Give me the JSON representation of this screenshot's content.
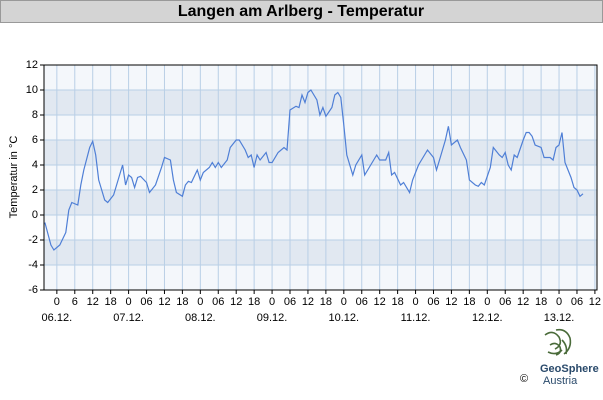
{
  "chart_data": {
    "type": "line",
    "title": "Langen am Arlberg - Temperatur",
    "y_label": "Temperatur in °C",
    "x": [
      -4,
      -2,
      -1,
      1,
      3,
      4,
      5,
      7,
      8,
      9,
      11,
      12,
      13,
      14,
      15,
      16,
      17,
      19,
      20,
      22,
      23,
      24,
      25,
      26,
      27,
      28,
      30,
      31,
      33,
      35,
      36,
      38,
      39,
      40,
      42,
      43,
      44,
      45,
      47,
      48,
      49,
      51,
      52,
      53,
      54,
      55,
      57,
      58,
      60,
      61,
      63,
      64,
      65,
      66,
      67,
      68,
      70,
      71,
      72,
      74,
      76,
      77,
      78,
      80,
      81,
      82,
      83,
      84,
      85,
      87,
      88,
      89,
      90,
      92,
      93,
      94,
      95,
      96,
      97,
      99,
      100,
      102,
      103,
      105,
      107,
      108,
      110,
      111,
      112,
      113,
      115,
      116,
      118,
      119,
      121,
      123,
      124,
      126,
      127,
      128,
      130,
      131,
      132,
      134,
      135,
      137,
      138,
      140,
      141,
      142,
      143,
      145,
      146,
      148,
      149,
      150,
      151,
      152,
      153,
      154,
      156,
      157,
      158,
      159,
      160,
      162,
      163,
      165,
      166,
      167,
      168,
      169,
      170,
      171,
      172,
      173,
      174,
      175,
      176
    ],
    "series": [
      {
        "name": "Temperatur",
        "color": "#4f7fd6",
        "values": [
          -0.6,
          -2.4,
          -2.8,
          -2.4,
          -1.4,
          0.4,
          1.0,
          0.8,
          2.4,
          3.6,
          5.4,
          5.9,
          4.8,
          2.8,
          2.0,
          1.2,
          1.0,
          1.6,
          2.4,
          4.0,
          2.4,
          3.2,
          3.0,
          2.2,
          3.0,
          3.1,
          2.6,
          1.8,
          2.4,
          3.8,
          4.6,
          4.4,
          2.8,
          1.8,
          1.5,
          2.4,
          2.7,
          2.6,
          3.6,
          2.8,
          3.4,
          3.8,
          4.2,
          3.8,
          4.2,
          3.8,
          4.4,
          5.4,
          6.0,
          6.0,
          5.2,
          4.6,
          4.8,
          3.8,
          4.8,
          4.4,
          5.0,
          4.2,
          4.2,
          5.0,
          5.4,
          5.2,
          8.4,
          8.7,
          8.6,
          9.6,
          9.0,
          9.8,
          10.0,
          9.2,
          8.0,
          8.6,
          7.9,
          8.6,
          9.6,
          9.8,
          9.4,
          7.2,
          4.8,
          3.2,
          4.0,
          4.8,
          3.2,
          4.0,
          4.8,
          4.4,
          4.4,
          5.0,
          3.2,
          3.4,
          2.4,
          2.6,
          1.8,
          2.8,
          4.0,
          4.8,
          5.2,
          4.6,
          3.6,
          4.4,
          6.0,
          7.1,
          5.6,
          6.0,
          5.4,
          4.4,
          2.8,
          2.4,
          2.3,
          2.6,
          2.4,
          3.8,
          5.4,
          4.8,
          4.6,
          5.0,
          4.0,
          3.6,
          4.8,
          4.6,
          6.0,
          6.6,
          6.6,
          6.3,
          5.6,
          5.4,
          4.6,
          4.6,
          4.4,
          5.4,
          5.6,
          6.6,
          4.2,
          3.6,
          3.0,
          2.2,
          2.0,
          1.5,
          1.7
        ]
      }
    ],
    "xlim": [
      -4.3,
      180.7
    ],
    "xticks": [
      0,
      6,
      12,
      18,
      {
        "value": 24,
        "label": "0"
      },
      {
        "value": 30,
        "label": "06"
      },
      {
        "value": 36,
        "label": "12"
      },
      {
        "value": 42,
        "label": "18"
      },
      {
        "value": 48,
        "label": "0"
      },
      {
        "value": 54,
        "label": "06"
      },
      {
        "value": 60,
        "label": "12"
      },
      {
        "value": 66,
        "label": "18"
      },
      {
        "value": 72,
        "label": "0"
      },
      {
        "value": 78,
        "label": "06"
      },
      {
        "value": 84,
        "label": "12"
      },
      {
        "value": 90,
        "label": "18"
      },
      {
        "value": 96,
        "label": "0"
      },
      {
        "value": 102,
        "label": "06"
      },
      {
        "value": 108,
        "label": "12"
      },
      {
        "value": 114,
        "label": "18"
      },
      {
        "value": 120,
        "label": "0"
      },
      {
        "value": 126,
        "label": "06"
      },
      {
        "value": 132,
        "label": "12"
      },
      {
        "value": 138,
        "label": "18"
      },
      {
        "value": 144,
        "label": "0"
      },
      {
        "value": 150,
        "label": "06"
      },
      {
        "value": 156,
        "label": "12"
      },
      {
        "value": 162,
        "label": "18"
      },
      {
        "value": 168,
        "label": "0"
      },
      {
        "value": 174,
        "label": "06"
      },
      {
        "value": 180,
        "label": "12"
      }
    ],
    "day_labels": [
      {
        "value": 0,
        "label": "06.12."
      },
      {
        "value": 24,
        "label": "07.12."
      },
      {
        "value": 48,
        "label": "08.12."
      },
      {
        "value": 72,
        "label": "09.12."
      },
      {
        "value": 96,
        "label": "10.12."
      },
      {
        "value": 120,
        "label": "11.12."
      },
      {
        "value": 144,
        "label": "12.12."
      },
      {
        "value": 168,
        "label": "13.12."
      }
    ],
    "ylim": [
      -6,
      12
    ],
    "yticks": [
      -6,
      -4,
      -2,
      0,
      2,
      4,
      6,
      8,
      10,
      12
    ],
    "grid": true,
    "logo": {
      "name": "GeoSphere",
      "sub": "Austria",
      "copyright": "©"
    }
  }
}
